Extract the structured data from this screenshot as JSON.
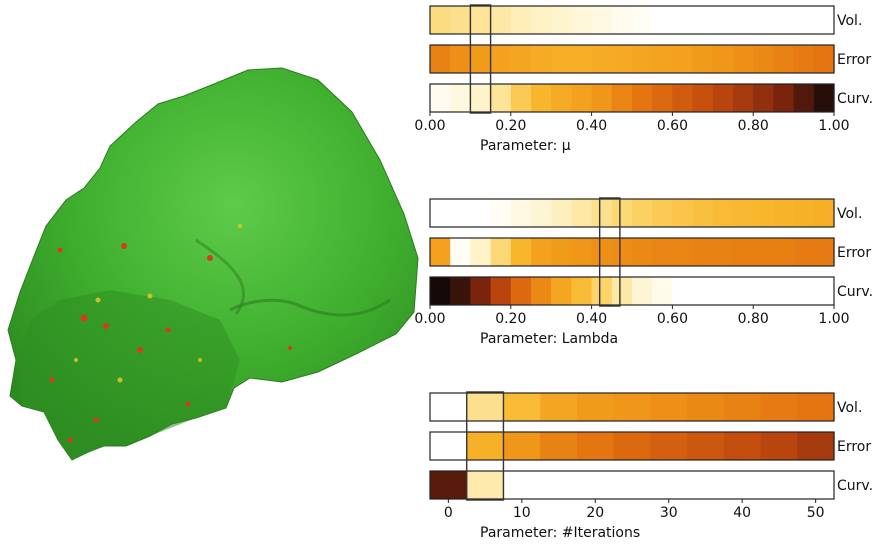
{
  "chart_data": [
    {
      "type": "heatmap",
      "xlabel": "Parameter: μ",
      "x_ticks": [
        "0.00",
        "0.20",
        "0.40",
        "0.60",
        "0.80",
        "1.00"
      ],
      "xlim": [
        0,
        1
      ],
      "highlight": [
        0.1,
        0.15
      ],
      "rows": [
        {
          "label": "Vol.",
          "cells": [
            0.22,
            0.2,
            0.18,
            0.16,
            0.13,
            0.11,
            0.09,
            0.07,
            0.05,
            0.03,
            0.02,
            0,
            0,
            0,
            0,
            0,
            0,
            0,
            0,
            0
          ]
        },
        {
          "label": "Error",
          "cells": [
            0.56,
            0.52,
            0.48,
            0.46,
            0.44,
            0.42,
            0.41,
            0.41,
            0.42,
            0.43,
            0.44,
            0.45,
            0.46,
            0.48,
            0.5,
            0.52,
            0.54,
            0.56,
            0.58,
            0.6
          ]
        },
        {
          "label": "Curv.",
          "cells": [
            0.03,
            0.06,
            0.1,
            0.18,
            0.3,
            0.38,
            0.42,
            0.46,
            0.5,
            0.55,
            0.6,
            0.64,
            0.68,
            0.72,
            0.76,
            0.8,
            0.84,
            0.88,
            0.93,
            0.98
          ]
        }
      ]
    },
    {
      "type": "heatmap",
      "xlabel": "Parameter: Lambda",
      "x_ticks": [
        "0.00",
        "0.20",
        "0.40",
        "0.60",
        "0.80",
        "1.00"
      ],
      "xlim": [
        0,
        1
      ],
      "highlight": [
        0.42,
        0.47
      ],
      "rows": [
        {
          "label": "Vol.",
          "cells": [
            0,
            0,
            0,
            0.02,
            0.05,
            0.08,
            0.12,
            0.16,
            0.2,
            0.24,
            0.27,
            0.3,
            0.32,
            0.34,
            0.36,
            0.37,
            0.38,
            0.39,
            0.4,
            0.41
          ]
        },
        {
          "label": "Error",
          "cells": [
            0.46,
            0.02,
            0.1,
            0.24,
            0.38,
            0.46,
            0.48,
            0.5,
            0.52,
            0.53,
            0.54,
            0.55,
            0.55,
            0.56,
            0.56,
            0.57,
            0.57,
            0.57,
            0.58,
            0.58
          ]
        },
        {
          "label": "Curv.",
          "cells": [
            1.0,
            0.96,
            0.88,
            0.76,
            0.64,
            0.54,
            0.44,
            0.36,
            0.26,
            0.16,
            0.08,
            0.04,
            0,
            0,
            0,
            0,
            0,
            0,
            0,
            0
          ]
        }
      ]
    },
    {
      "type": "heatmap",
      "xlabel": "Parameter: #Iterations",
      "x_ticks": [
        "0",
        "10",
        "20",
        "30",
        "40",
        "50"
      ],
      "xlim": [
        -2.5,
        52.5
      ],
      "highlight": [
        2.5,
        7.5
      ],
      "rows": [
        {
          "label": "Vol.",
          "cells": [
            0,
            0.2,
            0.36,
            0.44,
            0.48,
            0.5,
            0.52,
            0.54,
            0.56,
            0.58,
            0.6
          ]
        },
        {
          "label": "Error",
          "cells": [
            0,
            0.4,
            0.5,
            0.56,
            0.6,
            0.64,
            0.67,
            0.7,
            0.73,
            0.76,
            0.8
          ]
        },
        {
          "label": "Curv.",
          "cells": [
            0.92,
            0.15,
            0,
            0,
            0,
            0,
            0,
            0,
            0,
            0,
            0
          ]
        }
      ]
    }
  ]
}
